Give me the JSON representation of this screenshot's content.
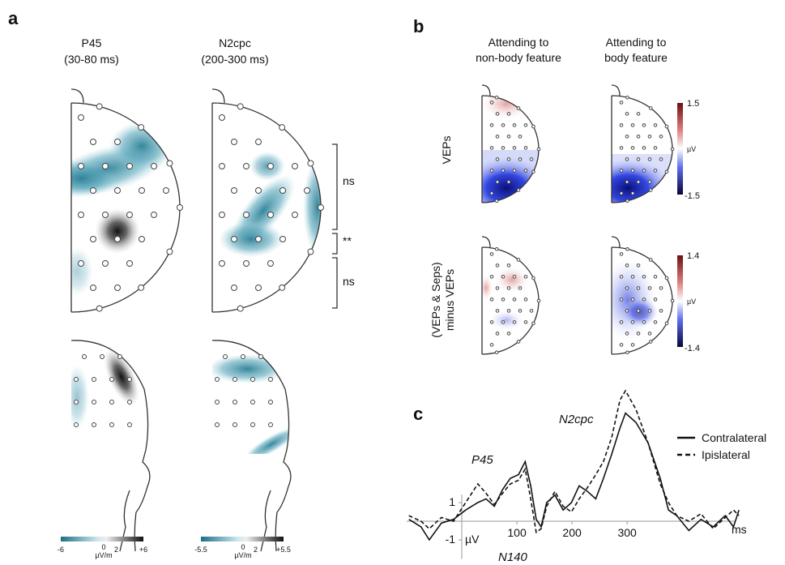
{
  "panel_a": {
    "label": "a",
    "columns": [
      {
        "title": "P45",
        "subtitle": "(30-80 ms)",
        "colorbar": {
          "min": "-6",
          "mid": "0",
          "max": "+6",
          "unit": "µV/m",
          "unit_exp": "2"
        }
      },
      {
        "title": "N2cpc",
        "subtitle": "(200-300 ms)",
        "colorbar": {
          "min": "-5.5",
          "mid": "0",
          "max": "+5.5",
          "unit": "µV/m",
          "unit_exp": "2"
        }
      }
    ],
    "brackets": [
      "ns",
      "**",
      "ns"
    ]
  },
  "panel_b": {
    "label": "b",
    "columns": [
      {
        "line1": "Attending to",
        "line2": "non-body feature"
      },
      {
        "line1": "Attending to",
        "line2": "body feature"
      }
    ],
    "rows": [
      {
        "line1": "VEPs",
        "colorbar": {
          "max": "1.5",
          "unit": "µV",
          "min": "-1.5"
        }
      },
      {
        "line1": "(VEPs & Seps)",
        "line2": "minus VEPs",
        "colorbar": {
          "max": "1.4",
          "unit": "µV",
          "min": "-1.4"
        }
      }
    ]
  },
  "panel_c": {
    "label": "c",
    "annotations": [
      "N2cpc",
      "P45",
      "N140"
    ]
  },
  "chart_data": {
    "type": "line",
    "x_label": "ms",
    "y_label": "µV",
    "x": [
      -96,
      -74,
      -59,
      -37,
      -15,
      7,
      29,
      44,
      59,
      74,
      88,
      103,
      115,
      125,
      135,
      144,
      154,
      169,
      184,
      199,
      213,
      228,
      243,
      257,
      272,
      287,
      297,
      316,
      338,
      360,
      375,
      390,
      412,
      434,
      456,
      478,
      493,
      503
    ],
    "series": [
      {
        "name": "Contralateral",
        "color": "#111111",
        "dash": false,
        "values": [
          0.1,
          -0.3,
          -1.0,
          -0.1,
          0.1,
          0.6,
          1.0,
          1.2,
          0.8,
          1.7,
          2.3,
          2.5,
          3.2,
          1.9,
          0.1,
          -0.3,
          1.0,
          1.4,
          0.6,
          1.0,
          1.9,
          1.6,
          1.2,
          2.3,
          3.6,
          5.0,
          5.8,
          5.3,
          4.2,
          2.3,
          0.6,
          0.3,
          -0.5,
          0.1,
          -0.3,
          0.3,
          -0.3,
          0.6
        ]
      },
      {
        "name": "Ipislateral",
        "color": "#111111",
        "dash": true,
        "values": [
          0.3,
          0.0,
          -0.4,
          0.2,
          0.0,
          1.0,
          2.0,
          1.5,
          0.9,
          1.5,
          2.0,
          2.2,
          2.8,
          1.2,
          -0.6,
          -0.4,
          0.8,
          1.6,
          0.8,
          0.5,
          1.2,
          1.8,
          2.5,
          3.2,
          4.5,
          6.5,
          7.0,
          6.0,
          4.2,
          2.0,
          1.0,
          0.3,
          0.0,
          0.4,
          -0.4,
          0.2,
          0.6,
          0.3
        ]
      }
    ],
    "xlim": [
      -100,
      510
    ],
    "ylim": [
      -1.5,
      8
    ],
    "xticks": [
      100,
      200,
      300
    ],
    "yticks": [
      1,
      -1
    ]
  }
}
